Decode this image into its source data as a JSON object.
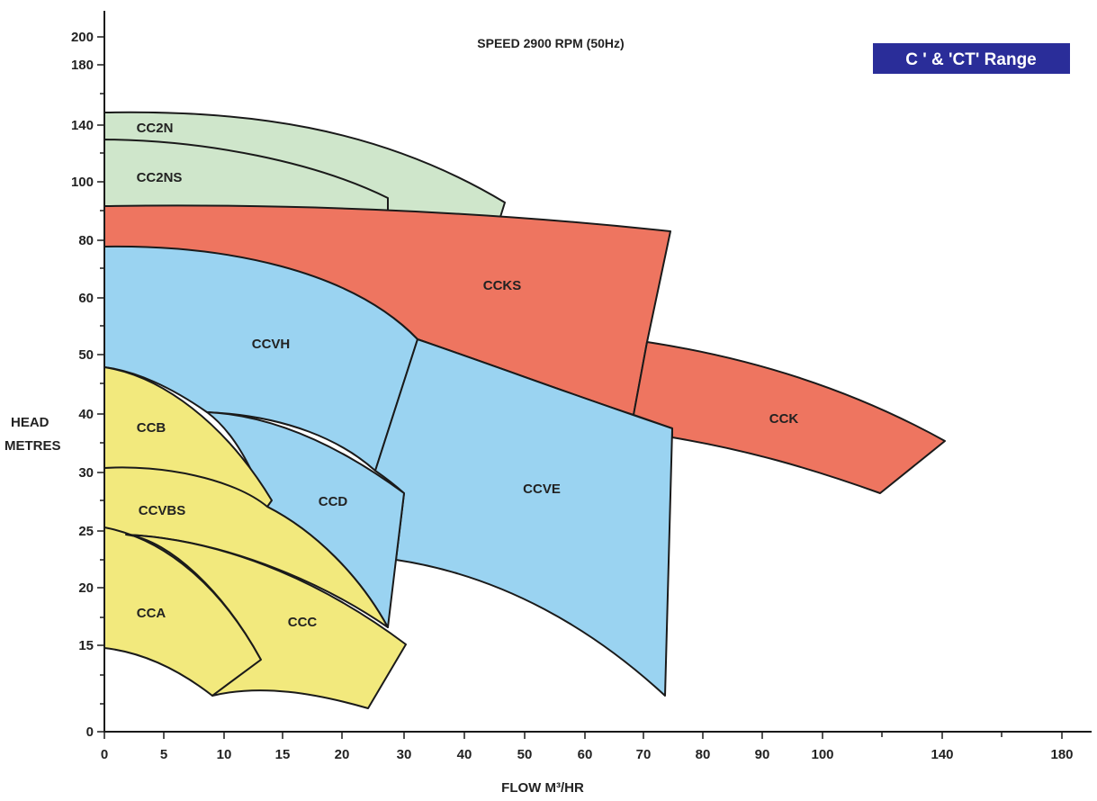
{
  "chart_data": {
    "type": "area",
    "title": "SPEED 2900 RPM (50Hz)",
    "badge": "C ' & 'CT' Range",
    "ylabel_lines": [
      "HEAD",
      "METRES"
    ],
    "xlabel": "FLOW M³/HR",
    "y_ticks": [
      "0",
      "15",
      "20",
      "25",
      "30",
      "40",
      "50",
      "60",
      "80",
      "100",
      "140",
      "180",
      "200"
    ],
    "x_ticks": [
      "0",
      "5",
      "10",
      "15",
      "20",
      "30",
      "40",
      "50",
      "60",
      "70",
      "80",
      "90",
      "100",
      "140",
      "180"
    ],
    "colors": {
      "green": "#cfe6cb",
      "red": "#ee7560",
      "blue": "#9ad3f1",
      "yellow": "#f2e97d",
      "badge": "#2a2d99"
    },
    "series": [
      {
        "name": "CC2N",
        "color": "green",
        "flow_range": [
          0,
          47
        ],
        "head_range": [
          86,
          148
        ]
      },
      {
        "name": "CC2NS",
        "color": "green",
        "flow_range": [
          0,
          28
        ],
        "head_range": [
          89,
          128
        ]
      },
      {
        "name": "CCKS",
        "color": "red",
        "flow_range": [
          0,
          75
        ],
        "head_range": [
          39,
          91
        ]
      },
      {
        "name": "CCK",
        "color": "red",
        "flow_range": [
          68,
          140
        ],
        "head_range": [
          28,
          52
        ]
      },
      {
        "name": "CCVH",
        "color": "blue",
        "flow_range": [
          0,
          33
        ],
        "head_range": [
          29,
          78
        ]
      },
      {
        "name": "CCVE",
        "color": "blue",
        "flow_range": [
          26,
          75
        ],
        "head_range": [
          12,
          54
        ]
      },
      {
        "name": "CCD",
        "color": "blue",
        "flow_range": [
          14,
          31
        ],
        "head_range": [
          16,
          40
        ]
      },
      {
        "name": "CCB",
        "color": "yellow",
        "flow_range": [
          0,
          15
        ],
        "head_range": [
          27,
          48
        ]
      },
      {
        "name": "CCVBS",
        "color": "yellow",
        "flow_range": [
          0,
          27
        ],
        "head_range": [
          16,
          31
        ]
      },
      {
        "name": "CCA",
        "color": "yellow",
        "flow_range": [
          0,
          13
        ],
        "head_range": [
          11.5,
          25
        ]
      },
      {
        "name": "CCC",
        "color": "yellow",
        "flow_range": [
          2,
          30
        ],
        "head_range": [
          10.5,
          24.5
        ]
      }
    ]
  }
}
